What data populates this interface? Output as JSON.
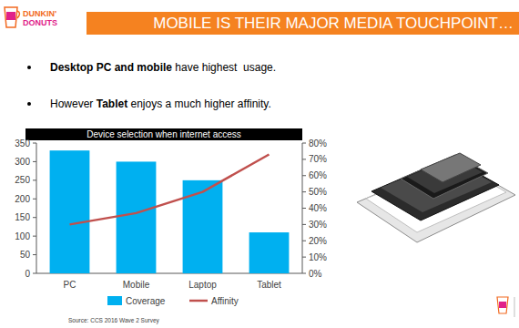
{
  "slide": {
    "logo": [
      "DUNKIN'",
      "DONUTS"
    ],
    "title": "MOBILE IS THEIR MAJOR MEDIA TOUCHPOINT…",
    "bullets": [
      [
        {
          "text": "Desktop PC and mobile",
          "bold": true
        },
        {
          "text": " have highest  usage.",
          "bold": false
        }
      ],
      [
        {
          "text": "However ",
          "bold": false
        },
        {
          "text": "Tablet",
          "bold": true
        },
        {
          "text": " enjoys a much higher affinity.",
          "bold": false
        }
      ]
    ],
    "source": "Source: CCS 2016 Wave 2 Survey"
  },
  "chart_data": {
    "type": "bar",
    "title": "Device selection when internet access",
    "categories": [
      "PC",
      "Mobile",
      "Laptop",
      "Tablet"
    ],
    "series": [
      {
        "name": "Coverage",
        "type": "bar",
        "color": "#00b0f0",
        "values": [
          330,
          300,
          250,
          110
        ]
      },
      {
        "name": "Affinity",
        "type": "line",
        "color": "#c0504d",
        "axis": "y2",
        "values": [
          30,
          37,
          50,
          73
        ]
      }
    ],
    "ylim": [
      0,
      350
    ],
    "yticks": [
      0,
      50,
      100,
      150,
      200,
      250,
      300,
      350
    ],
    "y2lim": [
      0,
      80
    ],
    "y2ticks": [
      {
        "value": 0,
        "label": "0%"
      },
      {
        "value": 10,
        "label": "10%"
      },
      {
        "value": 20,
        "label": "20%"
      },
      {
        "value": 30,
        "label": "30%"
      },
      {
        "value": 40,
        "label": "40%"
      },
      {
        "value": 50,
        "label": "50%"
      },
      {
        "value": 60,
        "label": "60%"
      },
      {
        "value": 70,
        "label": "70%"
      },
      {
        "value": 80,
        "label": "80%"
      }
    ],
    "grid": false,
    "legend": "bottom"
  }
}
